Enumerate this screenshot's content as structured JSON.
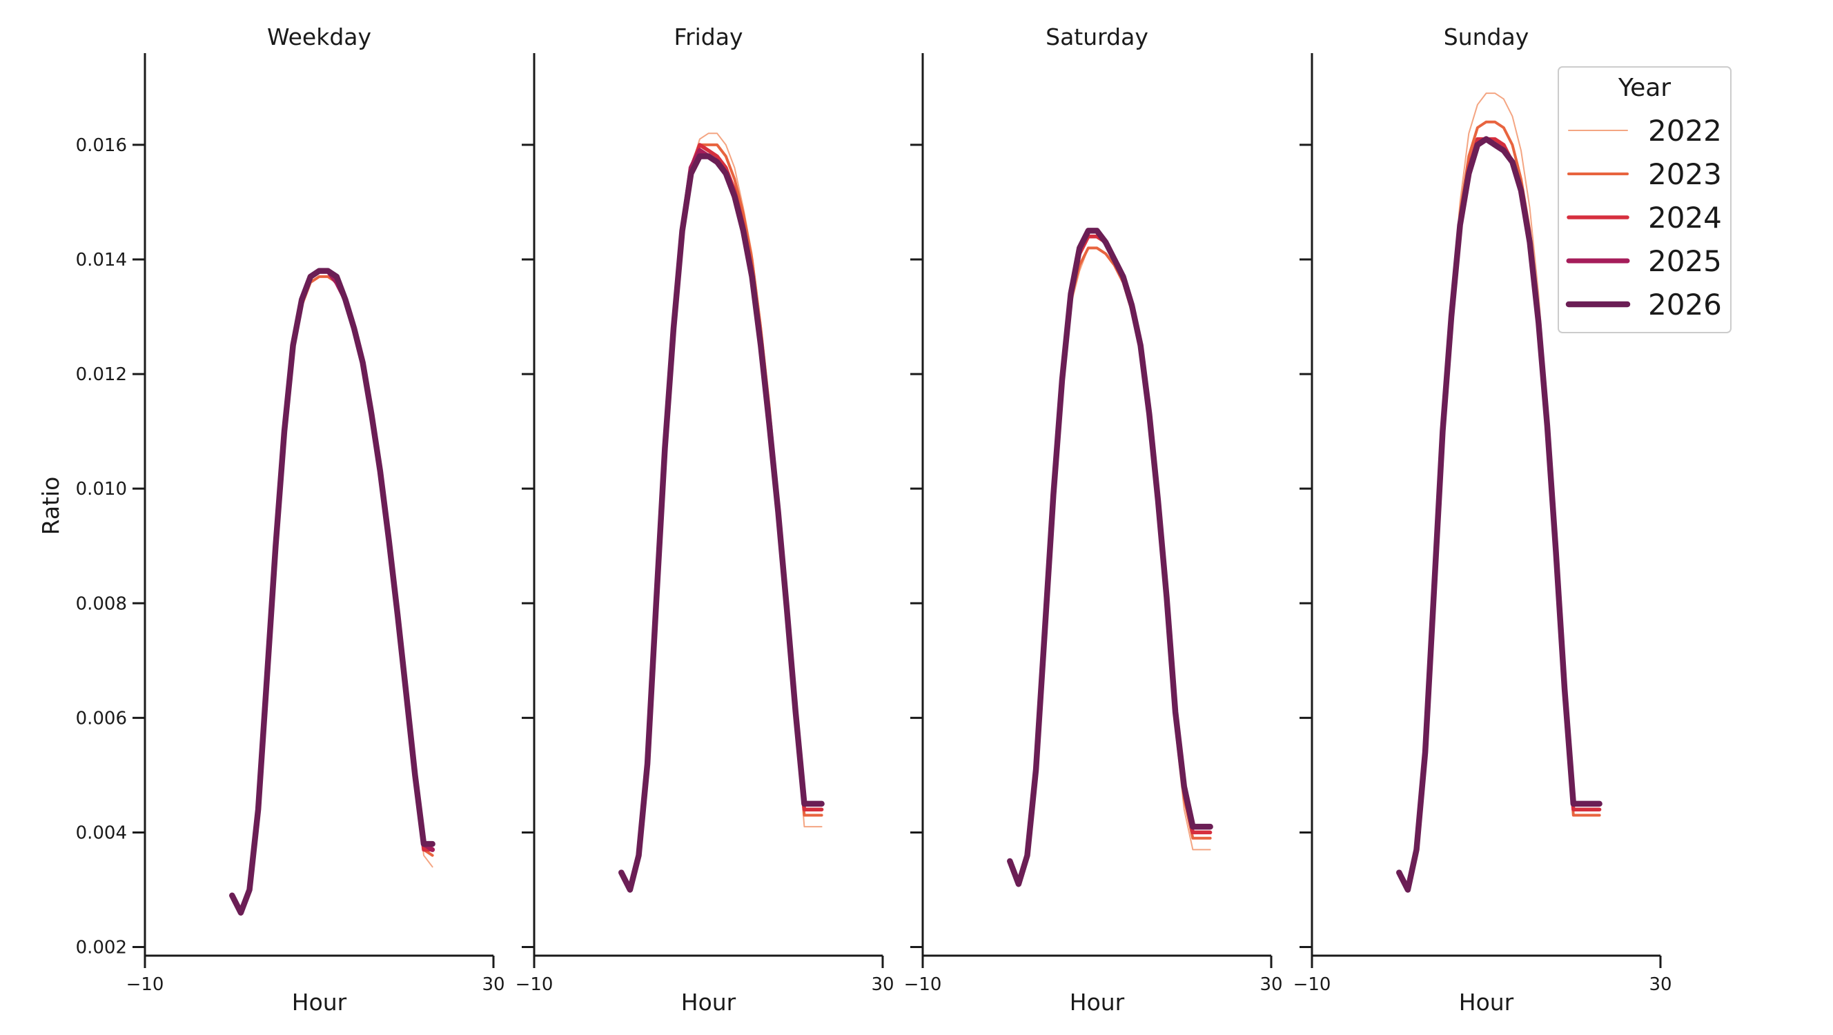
{
  "chart_data": {
    "type": "line",
    "ylabel": "Ratio",
    "xlabel": "Hour",
    "xlim": [
      -10,
      30
    ],
    "x_ticks": [
      "−10",
      "30"
    ],
    "ylim": [
      0.00185,
      0.0176
    ],
    "y_ticks": [
      "0.002",
      "0.004",
      "0.006",
      "0.008",
      "0.010",
      "0.012",
      "0.014",
      "0.016"
    ],
    "legend": {
      "title": "Year",
      "placement": "top-right"
    },
    "series_styles": [
      {
        "name": "2022",
        "color": "#f4a582",
        "width": 2
      },
      {
        "name": "2023",
        "color": "#e8643f",
        "width": 4
      },
      {
        "name": "2024",
        "color": "#d62f3e",
        "width": 5.5
      },
      {
        "name": "2025",
        "color": "#a51d5a",
        "width": 7
      },
      {
        "name": "2026",
        "color": "#6b1e55",
        "width": 8.5
      }
    ],
    "x": [
      0,
      1,
      2,
      3,
      4,
      5,
      6,
      7,
      8,
      9,
      10,
      11,
      12,
      13,
      14,
      15,
      16,
      17,
      18,
      19,
      20,
      21,
      22,
      23
    ],
    "panels": [
      {
        "title": "Weekday",
        "series": [
          {
            "name": "2022",
            "values": [
              0.0029,
              0.0026,
              0.003,
              0.0044,
              0.0067,
              0.009,
              0.011,
              0.0124,
              0.0132,
              0.0136,
              0.0137,
              0.0137,
              0.0136,
              0.0133,
              0.0128,
              0.0122,
              0.0113,
              0.0103,
              0.0091,
              0.0078,
              0.0064,
              0.005,
              0.0036,
              0.0034
            ]
          },
          {
            "name": "2023",
            "values": [
              0.0029,
              0.0026,
              0.003,
              0.0044,
              0.0067,
              0.009,
              0.011,
              0.0124,
              0.0132,
              0.0136,
              0.0137,
              0.0137,
              0.0136,
              0.0133,
              0.0128,
              0.0122,
              0.0113,
              0.0103,
              0.0091,
              0.0078,
              0.0064,
              0.005,
              0.0037,
              0.0036
            ]
          },
          {
            "name": "2024",
            "values": [
              0.0029,
              0.0026,
              0.003,
              0.0044,
              0.0067,
              0.009,
              0.011,
              0.0125,
              0.0133,
              0.0137,
              0.0138,
              0.0138,
              0.0136,
              0.0133,
              0.0128,
              0.0122,
              0.0113,
              0.0103,
              0.0091,
              0.0078,
              0.0064,
              0.005,
              0.0037,
              0.0037
            ]
          },
          {
            "name": "2025",
            "values": [
              0.0029,
              0.0026,
              0.003,
              0.0044,
              0.0067,
              0.009,
              0.011,
              0.0125,
              0.0133,
              0.0137,
              0.0138,
              0.0138,
              0.0136,
              0.0133,
              0.0128,
              0.0122,
              0.0113,
              0.0103,
              0.0091,
              0.0078,
              0.0064,
              0.005,
              0.0038,
              0.0037
            ]
          },
          {
            "name": "2026",
            "values": [
              0.0029,
              0.0026,
              0.003,
              0.0044,
              0.0067,
              0.009,
              0.011,
              0.0125,
              0.0133,
              0.0137,
              0.0138,
              0.0138,
              0.0137,
              0.0133,
              0.0128,
              0.0122,
              0.0113,
              0.0103,
              0.0091,
              0.0078,
              0.0064,
              0.005,
              0.0038,
              0.0038
            ]
          }
        ]
      },
      {
        "title": "Friday",
        "series": [
          {
            "name": "2022",
            "values": [
              0.0033,
              0.003,
              0.0036,
              0.0052,
              0.008,
              0.0107,
              0.0128,
              0.0145,
              0.0156,
              0.0161,
              0.0162,
              0.0162,
              0.016,
              0.0156,
              0.0149,
              0.0141,
              0.0129,
              0.0115,
              0.0098,
              0.008,
              0.006,
              0.0041,
              0.0041,
              0.0041
            ]
          },
          {
            "name": "2023",
            "values": [
              0.0033,
              0.003,
              0.0036,
              0.0052,
              0.008,
              0.0107,
              0.0128,
              0.0145,
              0.0156,
              0.016,
              0.016,
              0.016,
              0.0158,
              0.0154,
              0.0148,
              0.014,
              0.0128,
              0.0114,
              0.0097,
              0.0079,
              0.006,
              0.0043,
              0.0043,
              0.0043
            ]
          },
          {
            "name": "2024",
            "values": [
              0.0033,
              0.003,
              0.0036,
              0.0052,
              0.008,
              0.0107,
              0.0128,
              0.0145,
              0.0156,
              0.016,
              0.0159,
              0.0158,
              0.0156,
              0.0152,
              0.0146,
              0.0138,
              0.0126,
              0.0112,
              0.0096,
              0.0079,
              0.0061,
              0.0044,
              0.0044,
              0.0044
            ]
          },
          {
            "name": "2025",
            "values": [
              0.0033,
              0.003,
              0.0036,
              0.0052,
              0.008,
              0.0107,
              0.0128,
              0.0145,
              0.0156,
              0.0159,
              0.0158,
              0.0157,
              0.0155,
              0.0151,
              0.0145,
              0.0137,
              0.0125,
              0.0111,
              0.0096,
              0.0079,
              0.0061,
              0.0045,
              0.0045,
              0.0045
            ]
          },
          {
            "name": "2026",
            "values": [
              0.0033,
              0.003,
              0.0036,
              0.0052,
              0.008,
              0.0107,
              0.0128,
              0.0145,
              0.0155,
              0.0158,
              0.0158,
              0.0157,
              0.0155,
              0.0151,
              0.0145,
              0.0137,
              0.0125,
              0.0111,
              0.0096,
              0.0079,
              0.0061,
              0.0045,
              0.0045,
              0.0045
            ]
          }
        ]
      },
      {
        "title": "Saturday",
        "series": [
          {
            "name": "2022",
            "values": [
              0.0035,
              0.0031,
              0.0036,
              0.0051,
              0.0075,
              0.0099,
              0.0119,
              0.0132,
              0.0138,
              0.0142,
              0.0142,
              0.0141,
              0.0139,
              0.0136,
              0.0131,
              0.0123,
              0.0111,
              0.0096,
              0.0078,
              0.0058,
              0.0044,
              0.0037,
              0.0037,
              0.0037
            ]
          },
          {
            "name": "2023",
            "values": [
              0.0035,
              0.0031,
              0.0036,
              0.0051,
              0.0075,
              0.0099,
              0.0119,
              0.0133,
              0.0139,
              0.0142,
              0.0142,
              0.0141,
              0.0139,
              0.0136,
              0.0131,
              0.0124,
              0.0112,
              0.0097,
              0.008,
              0.006,
              0.0046,
              0.0039,
              0.0039,
              0.0039
            ]
          },
          {
            "name": "2024",
            "values": [
              0.0035,
              0.0031,
              0.0036,
              0.0051,
              0.0075,
              0.0099,
              0.0119,
              0.0133,
              0.0141,
              0.0144,
              0.0144,
              0.0143,
              0.014,
              0.0137,
              0.0132,
              0.0125,
              0.0113,
              0.0098,
              0.008,
              0.006,
              0.0047,
              0.004,
              0.004,
              0.004
            ]
          },
          {
            "name": "2025",
            "values": [
              0.0035,
              0.0031,
              0.0036,
              0.0051,
              0.0075,
              0.0099,
              0.0119,
              0.0134,
              0.0142,
              0.0145,
              0.0145,
              0.0143,
              0.014,
              0.0137,
              0.0132,
              0.0125,
              0.0113,
              0.0098,
              0.0081,
              0.0061,
              0.0048,
              0.0041,
              0.0041,
              0.0041
            ]
          },
          {
            "name": "2026",
            "values": [
              0.0035,
              0.0031,
              0.0036,
              0.0051,
              0.0075,
              0.0099,
              0.0119,
              0.0134,
              0.0142,
              0.0145,
              0.0145,
              0.0143,
              0.014,
              0.0137,
              0.0132,
              0.0125,
              0.0113,
              0.0098,
              0.0081,
              0.0061,
              0.0048,
              0.0041,
              0.0041,
              0.0041
            ]
          }
        ]
      },
      {
        "title": "Sunday",
        "series": [
          {
            "name": "2022",
            "values": [
              0.0033,
              0.003,
              0.0037,
              0.0054,
              0.0082,
              0.011,
              0.0132,
              0.015,
              0.0162,
              0.0167,
              0.0169,
              0.0169,
              0.0168,
              0.0165,
              0.0159,
              0.0149,
              0.0134,
              0.0114,
              0.0091,
              0.0066,
              0.0044,
              0.0044,
              0.0044,
              0.0044
            ]
          },
          {
            "name": "2023",
            "values": [
              0.0033,
              0.003,
              0.0037,
              0.0054,
              0.0082,
              0.011,
              0.0131,
              0.0148,
              0.0158,
              0.0163,
              0.0164,
              0.0164,
              0.0163,
              0.016,
              0.0154,
              0.0145,
              0.0131,
              0.0112,
              0.009,
              0.0065,
              0.0043,
              0.0043,
              0.0043,
              0.0043
            ]
          },
          {
            "name": "2024",
            "values": [
              0.0033,
              0.003,
              0.0037,
              0.0054,
              0.0082,
              0.011,
              0.013,
              0.0146,
              0.0156,
              0.0161,
              0.0161,
              0.0161,
              0.016,
              0.0157,
              0.0152,
              0.0143,
              0.0129,
              0.0111,
              0.0089,
              0.0065,
              0.0044,
              0.0044,
              0.0044,
              0.0044
            ]
          },
          {
            "name": "2025",
            "values": [
              0.0033,
              0.003,
              0.0037,
              0.0054,
              0.0082,
              0.011,
              0.013,
              0.0146,
              0.0155,
              0.016,
              0.0161,
              0.016,
              0.0159,
              0.0157,
              0.0152,
              0.0143,
              0.0129,
              0.0111,
              0.0089,
              0.0065,
              0.0045,
              0.0045,
              0.0045,
              0.0045
            ]
          },
          {
            "name": "2026",
            "values": [
              0.0033,
              0.003,
              0.0037,
              0.0054,
              0.0082,
              0.011,
              0.013,
              0.0146,
              0.0155,
              0.016,
              0.0161,
              0.016,
              0.0159,
              0.0157,
              0.0152,
              0.0143,
              0.0129,
              0.0111,
              0.0089,
              0.0065,
              0.0045,
              0.0045,
              0.0045,
              0.0045
            ]
          }
        ]
      }
    ]
  }
}
